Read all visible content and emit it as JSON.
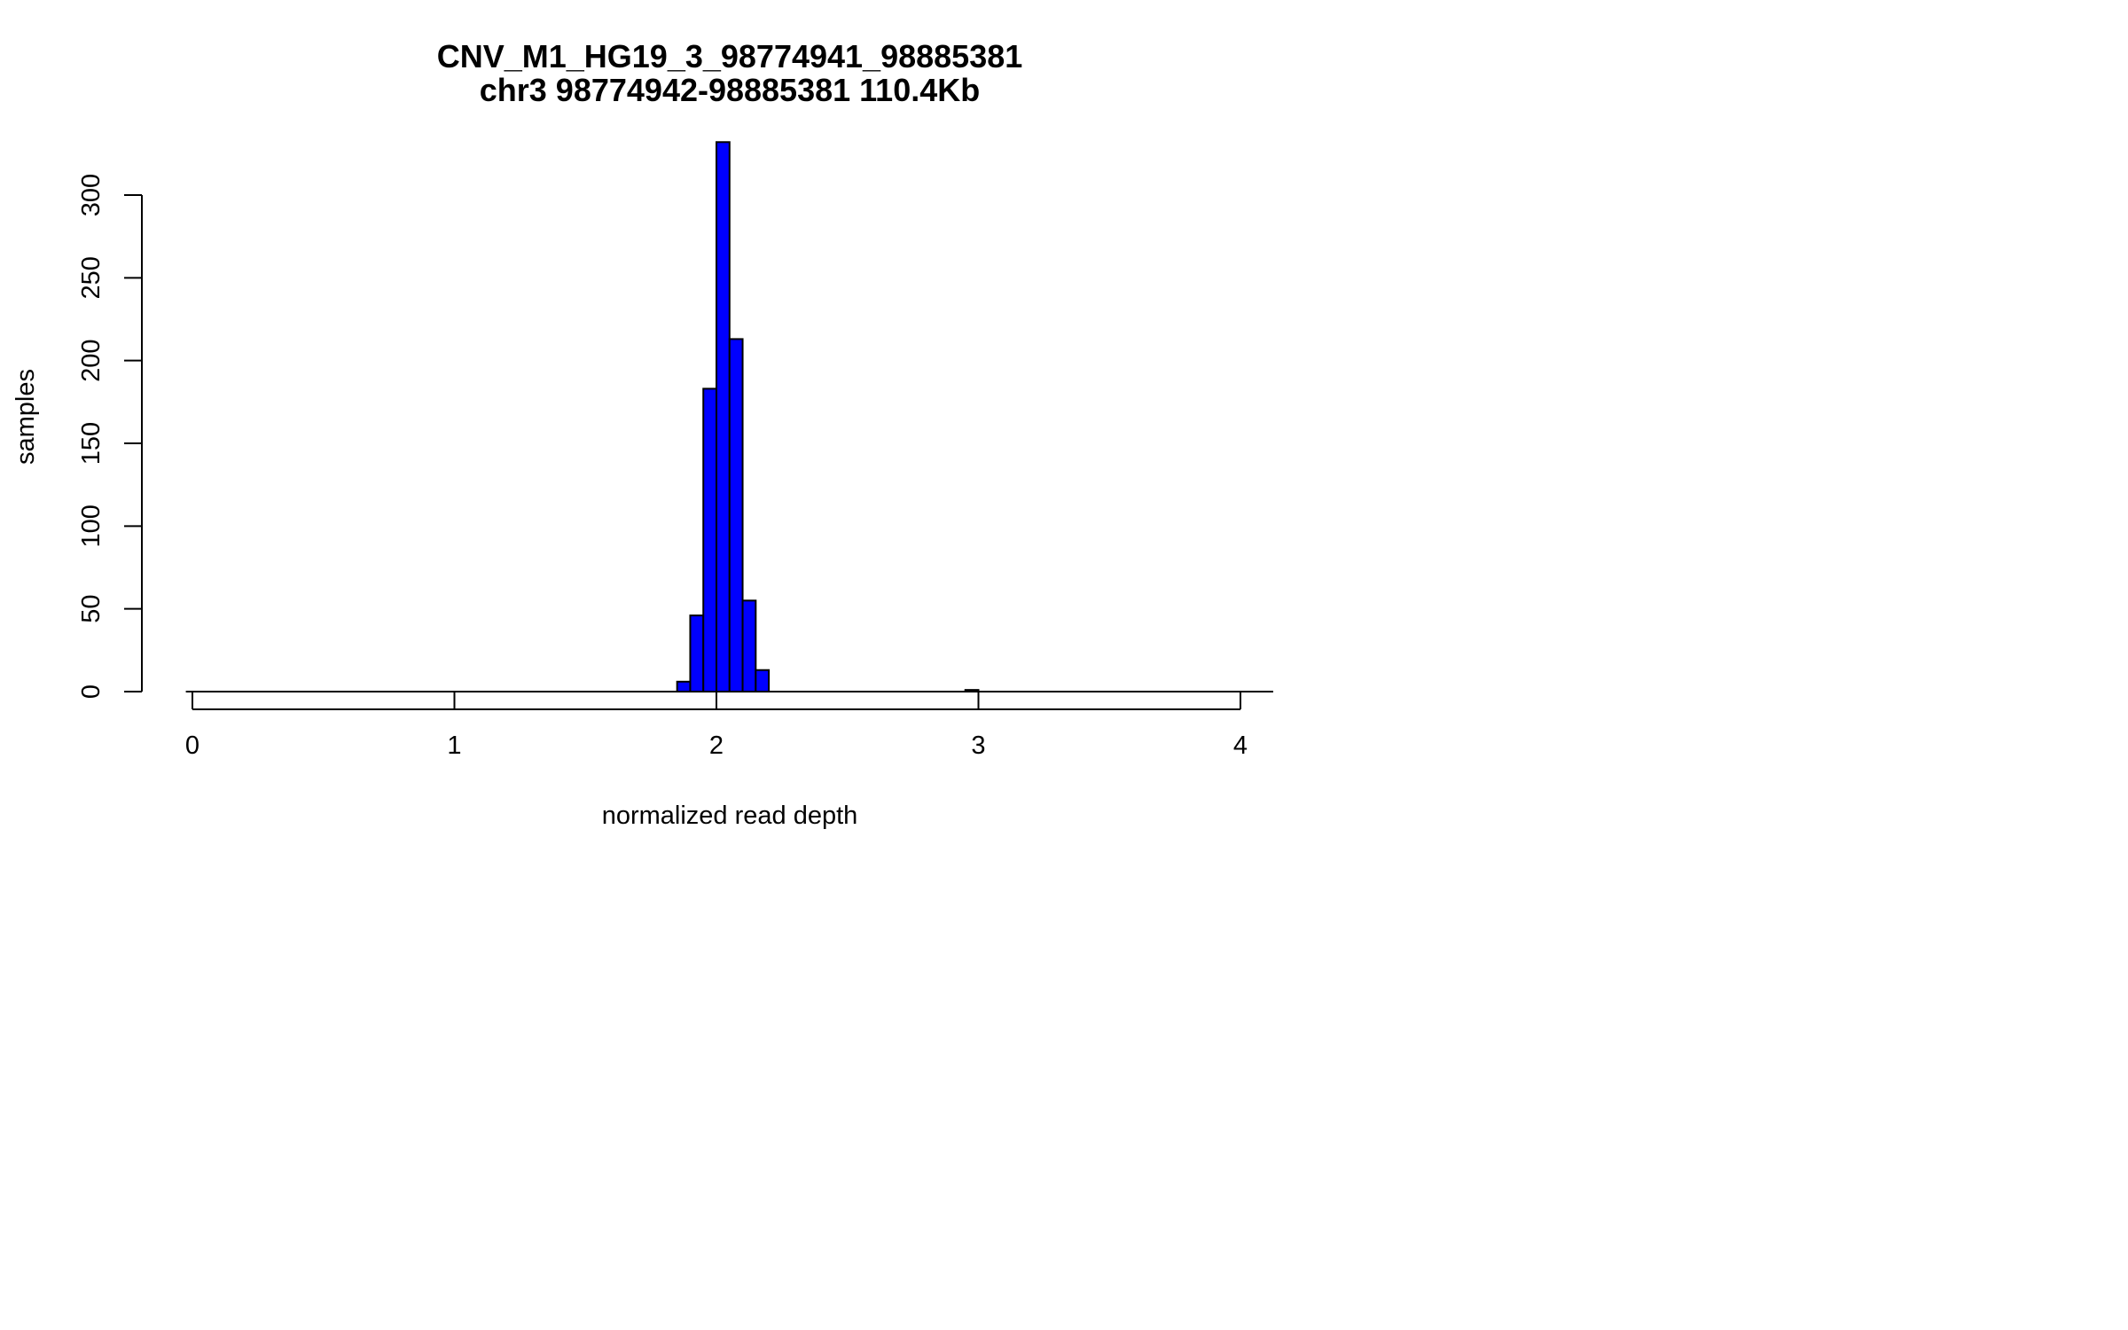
{
  "chart_data": {
    "type": "bar",
    "title": "CNV_M1_HG19_3_98774941_98885381",
    "subtitle": "chr3 98774942-98885381 110.4Kb",
    "xlabel": "normalized read depth",
    "ylabel": "samples",
    "xlim": [
      -0.025,
      4.125
    ],
    "ylim": [
      0,
      300
    ],
    "x_ticks": [
      0,
      1,
      2,
      3,
      4
    ],
    "x_tick_labels": [
      "0",
      "1",
      "2",
      "3",
      "4"
    ],
    "y_ticks": [
      0,
      50,
      100,
      150,
      200,
      250,
      300
    ],
    "y_tick_labels": [
      "0",
      "50",
      "100",
      "150",
      "200",
      "250",
      "300"
    ],
    "bin_width": 0.05,
    "bin_starts": [
      1.85,
      1.9,
      1.95,
      2.0,
      2.05,
      2.1,
      2.15,
      2.95
    ],
    "values": [
      6,
      46,
      183,
      332,
      213,
      55,
      13,
      1
    ],
    "bar_color": "#0000ff",
    "grid": false,
    "legend": "none"
  }
}
